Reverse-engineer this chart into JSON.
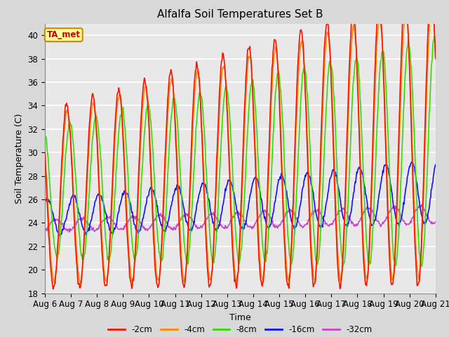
{
  "title": "Alfalfa Soil Temperatures Set B",
  "xlabel": "Time",
  "ylabel": "Soil Temperature (C)",
  "ylim": [
    18,
    41
  ],
  "background_color": "#d8d8d8",
  "plot_background": "#e8e8e8",
  "grid_color": "white",
  "xtick_labels": [
    "Aug 6",
    "Aug 7",
    "Aug 8",
    "Aug 9",
    "Aug 10",
    "Aug 11",
    "Aug 12",
    "Aug 13",
    "Aug 14",
    "Aug 15",
    "Aug 16",
    "Aug 17",
    "Aug 18",
    "Aug 19",
    "Aug 20",
    "Aug 21"
  ],
  "series": {
    "-2cm": {
      "color": "#ff1100",
      "lw": 1.2
    },
    "-4cm": {
      "color": "#ff8800",
      "lw": 1.2
    },
    "-8cm": {
      "color": "#33dd00",
      "lw": 1.2
    },
    "-16cm": {
      "color": "#1111ff",
      "lw": 1.2
    },
    "-32cm": {
      "color": "#cc44cc",
      "lw": 1.2
    }
  },
  "annotation_text": "TA_met",
  "annotation_color": "#cc0000",
  "annotation_bg": "#ffff99",
  "annotation_border": "#cc8800",
  "n_days": 15,
  "n_per_day": 48
}
